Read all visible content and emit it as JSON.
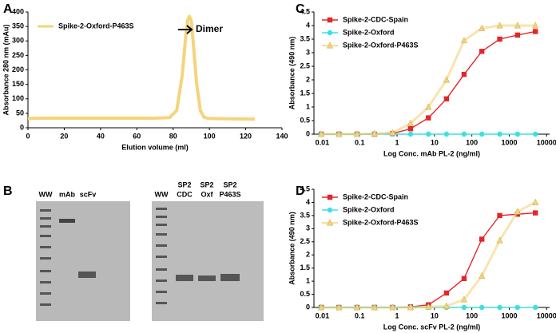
{
  "chart_data": [
    {
      "type": "line",
      "panel": "A",
      "xlabel": "Elution volume (ml)",
      "ylabel": "Absorbance 280 nm (mAu)",
      "annotation": "Dimer",
      "legend": "upper left",
      "x": [
        0,
        10,
        20,
        30,
        40,
        50,
        60,
        70,
        78,
        82,
        85,
        87,
        88,
        89,
        90,
        91,
        93,
        95,
        97,
        100,
        110,
        125
      ],
      "xlim": [
        0,
        140
      ],
      "xticks": [
        0,
        20,
        40,
        60,
        80,
        100,
        120,
        140
      ],
      "ylim": [
        0,
        400
      ],
      "yticks": [
        0,
        50,
        100,
        150,
        200,
        250,
        300,
        350,
        400
      ],
      "series": [
        {
          "name": "Spike-2-Oxford-P463S",
          "color": "#f5d47a",
          "values": [
            32,
            33,
            33,
            33,
            33,
            33,
            33,
            33,
            35,
            60,
            180,
            320,
            370,
            385,
            370,
            300,
            150,
            60,
            36,
            32,
            31,
            30
          ]
        }
      ]
    },
    {
      "type": "line",
      "panel": "C",
      "xlabel": "Log Conc. mAb PL-2 (ng/ml)",
      "ylabel": "Absorbance (490 nm)",
      "xscale": "log",
      "legend": "upper left",
      "x": [
        0.0094,
        0.028,
        0.085,
        0.25,
        0.76,
        2.3,
        6.9,
        21,
        62,
        185,
        556,
        1667,
        5000
      ],
      "xlim": [
        0.006,
        12000
      ],
      "xticks": [
        0.01,
        0.1,
        1,
        10,
        100,
        1000,
        10000
      ],
      "ylim": [
        0,
        4.5
      ],
      "yticks": [
        0,
        0.5,
        1,
        1.5,
        2,
        2.5,
        3,
        3.5,
        4,
        4.5
      ],
      "series": [
        {
          "name": "Spike-2-CDC-Spain",
          "color": "#e3262a",
          "marker": "square",
          "values": [
            0,
            0,
            0,
            0,
            0.02,
            0.2,
            0.6,
            1.3,
            2.2,
            3.05,
            3.5,
            3.65,
            3.78
          ]
        },
        {
          "name": "Spike-2-Oxford",
          "color": "#3ddfe0",
          "marker": "circle",
          "values": [
            0,
            0,
            0,
            0,
            0,
            0,
            0,
            0,
            0,
            0,
            0,
            0,
            0
          ]
        },
        {
          "name": "Spike-2-Oxford-P463S",
          "color": "#f3d27a",
          "marker": "triangle",
          "values": [
            0,
            0,
            0,
            0.02,
            0.05,
            0.4,
            1.0,
            2.0,
            3.45,
            3.9,
            4.0,
            4.0,
            4.0
          ]
        }
      ]
    },
    {
      "type": "line",
      "panel": "D",
      "xlabel": "Log Conc. scFv PL-2 (ng/ml)",
      "ylabel": "Absorbance (490 nm)",
      "xscale": "log",
      "legend": "upper left",
      "x": [
        0.0094,
        0.028,
        0.085,
        0.25,
        0.76,
        2.3,
        6.9,
        21,
        62,
        185,
        556,
        1667,
        5000
      ],
      "xlim": [
        0.006,
        12000
      ],
      "xticks": [
        0.01,
        0.1,
        1,
        10,
        100,
        1000,
        10000
      ],
      "ylim": [
        0,
        4.5
      ],
      "yticks": [
        0,
        0.5,
        1,
        1.5,
        2,
        2.5,
        3,
        3.5,
        4,
        4.5
      ],
      "series": [
        {
          "name": "Spike-2-CDC-Spain",
          "color": "#e3262a",
          "marker": "square",
          "values": [
            0,
            0,
            0,
            0,
            0,
            0.02,
            0.1,
            0.55,
            1.1,
            2.6,
            3.5,
            3.55,
            3.6
          ]
        },
        {
          "name": "Spike-2-Oxford",
          "color": "#3ddfe0",
          "marker": "circle",
          "values": [
            0,
            0,
            0,
            0,
            0,
            0,
            0,
            0,
            0,
            0,
            0,
            0,
            0
          ]
        },
        {
          "name": "Spike-2-Oxford-P463S",
          "color": "#f3d27a",
          "marker": "triangle",
          "values": [
            0,
            0,
            0,
            0,
            0,
            0,
            0.02,
            0.05,
            0.3,
            1.2,
            2.55,
            3.65,
            4.0
          ]
        }
      ]
    }
  ],
  "gel": {
    "panel": "B",
    "left_lanes": [
      "WW",
      "mAb",
      "scFv"
    ],
    "right_lanes": [
      "WW",
      [
        "SP2",
        "CDC"
      ],
      [
        "SP2",
        "Oxf"
      ],
      [
        "SP2",
        "P463S"
      ]
    ]
  }
}
